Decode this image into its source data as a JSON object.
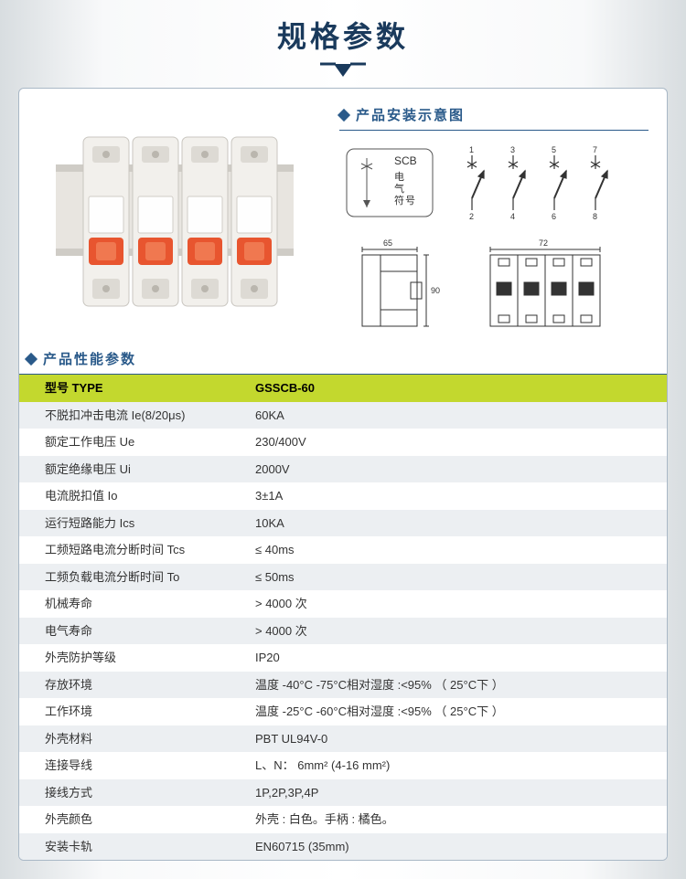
{
  "title": "规格参数",
  "colors": {
    "title_color": "#1a3a5c",
    "accent": "#2a5a8a",
    "header_row_bg": "#c3d82e",
    "row_alt_bg": "#eceff2",
    "panel_border": "#a9b8c6"
  },
  "install_section": {
    "heading": "产品安装示意图",
    "symbol_box": {
      "label_top": "SCB",
      "label_side": "电气符号"
    },
    "terminal_numbers": [
      "1",
      "3",
      "5",
      "7",
      "2",
      "4",
      "6",
      "8"
    ],
    "dim1": "65",
    "dim2": "90",
    "dim3": "72"
  },
  "spec_section": {
    "heading": "产品性能参数",
    "header": {
      "label": "型号 TYPE",
      "value": "GSSCB-60"
    },
    "rows": [
      {
        "label": "不脱扣冲击电流 Ie(8/20μs)",
        "value": "60KA"
      },
      {
        "label": "额定工作电压 Ue",
        "value": "230/400V"
      },
      {
        "label": "额定绝缘电压 Ui",
        "value": "2000V"
      },
      {
        "label": "电流脱扣值 Io",
        "value": "3±1A"
      },
      {
        "label": "运行短路能力 Ics",
        "value": "10KA"
      },
      {
        "label": "工频短路电流分断时间 Tcs",
        "value": "≤ 40ms"
      },
      {
        "label": "工频负载电流分断时间 To",
        "value": "≤ 50ms"
      },
      {
        "label": "机械寿命",
        "value": "> 4000 次"
      },
      {
        "label": "电气寿命",
        "value": "> 4000 次"
      },
      {
        "label": "外壳防护等级",
        "value": "IP20"
      },
      {
        "label": "存放环境",
        "value": "温度 -40°C -75°C相对湿度 :<95%  （ 25°C下 ）"
      },
      {
        "label": "工作环境",
        "value": "温度 -25°C -60°C相对湿度 :<95%  （ 25°C下 ）"
      },
      {
        "label": "外壳材料",
        "value": "PBT UL94V-0"
      },
      {
        "label": "连接导线",
        "value": "L、N：  6mm²  (4-16 mm²)"
      },
      {
        "label": "接线方式",
        "value": "1P,2P,3P,4P"
      },
      {
        "label": "外壳颜色",
        "value": "外壳 : 白色。手柄 : 橘色。"
      },
      {
        "label": "安装卡轨",
        "value": "EN60715 (35mm)"
      }
    ]
  }
}
